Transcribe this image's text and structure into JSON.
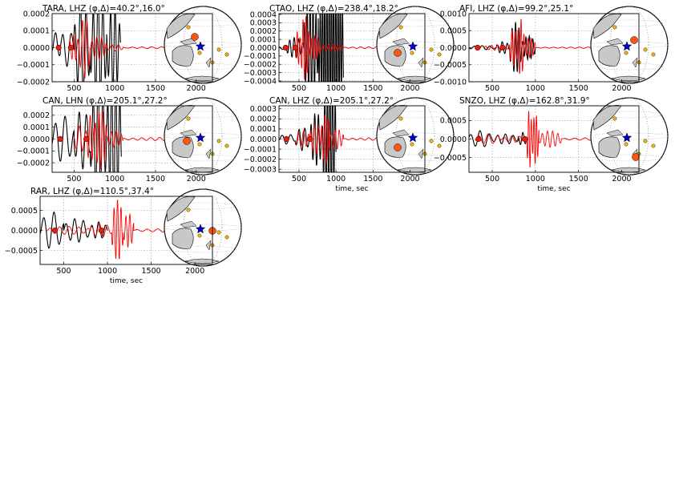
{
  "chart_data": [
    {
      "type": "line",
      "title": "TARA, LHZ (φ,Δ)=40.2°,16.0°",
      "xlabel": "",
      "xlim": [
        230,
        2200
      ],
      "ylim": [
        -0.0002,
        0.0002
      ],
      "x_ticks": [
        500,
        1000,
        1500,
        2000
      ],
      "y_ticks": [
        -0.0002,
        -0.0001,
        0.0,
        0.0001,
        0.0002
      ],
      "x_tick_labels": [
        "500",
        "1000",
        "1500",
        "2000"
      ],
      "y_tick_labels": [
        "−0.0002",
        "−0.0001",
        "0.0000",
        "0.0001",
        "0.0002"
      ],
      "markers_x": [
        310,
        460
      ],
      "series": [
        {
          "color": "#000000",
          "x": [
            230,
            1080
          ],
          "amplitude_envelope": [
            [
              250,
              0.0001
            ],
            [
              500,
              0.00012
            ],
            [
              800,
              0.0003
            ],
            [
              1000,
              0.00022
            ],
            [
              1080,
              0
            ]
          ]
        },
        {
          "color": "#ff0000",
          "x": [
            400,
            2200
          ],
          "amplitude_envelope": [
            [
              450,
              2e-05
            ],
            [
              600,
              7e-05
            ],
            [
              800,
              3e-05
            ],
            [
              1000,
              1e-05
            ],
            [
              1400,
              5e-06
            ]
          ]
        }
      ],
      "grid": true
    },
    {
      "type": "line",
      "title": "CTAO, LHZ (φ,Δ)=238.4°,18.2°",
      "xlabel": "",
      "xlim": [
        230,
        2200
      ],
      "ylim": [
        -0.00041,
        0.00041
      ],
      "x_ticks": [
        500,
        1000,
        1500,
        2000
      ],
      "y_ticks": [
        -0.0004,
        -0.0003,
        -0.0002,
        -0.0001,
        0.0,
        0.0001,
        0.0002,
        0.0003,
        0.0004
      ],
      "x_tick_labels": [
        "500",
        "1000",
        "1500",
        "2000"
      ],
      "y_tick_labels": [
        "−0.0004",
        "−0.0003",
        "−0.0002",
        "−0.0001",
        "0.0000",
        "0.0001",
        "0.0002",
        "0.0003",
        "0.0004"
      ],
      "markers_x": [
        320,
        450
      ],
      "grid": true
    },
    {
      "type": "line",
      "title": "AFI, LHZ (φ,Δ)=99.2°,25.1°",
      "xlabel": "",
      "xlim": [
        230,
        2200
      ],
      "ylim": [
        -0.001,
        0.001
      ],
      "x_ticks": [
        500,
        1000,
        1500,
        2000
      ],
      "y_ticks": [
        -0.001,
        -0.0005,
        0.0,
        0.0005,
        0.001
      ],
      "x_tick_labels": [
        "500",
        "1000",
        "1500",
        "2000"
      ],
      "y_tick_labels": [
        "−0.0010",
        "−0.0005",
        "0.0000",
        "0.0005",
        "0.0010"
      ],
      "markers_x": [
        330,
        620
      ],
      "grid": true
    },
    {
      "type": "line",
      "title": "CAN, LHN (φ,Δ)=205.1°,27.2°",
      "xlabel": "",
      "xlim": [
        230,
        2200
      ],
      "ylim": [
        -0.00028,
        0.00028
      ],
      "x_ticks": [
        500,
        1000,
        1500,
        2000
      ],
      "y_ticks": [
        -0.0002,
        -0.0001,
        0.0,
        0.0001,
        0.0002
      ],
      "x_tick_labels": [
        "500",
        "1000",
        "1500",
        "2000"
      ],
      "y_tick_labels": [
        "−0.0002",
        "−0.0001",
        "0.0000",
        "0.0001",
        "0.0002"
      ],
      "markers_x": [
        330,
        650
      ],
      "grid": true
    },
    {
      "type": "line",
      "title": "CAN, LHZ (φ,Δ)=205.1°,27.2°",
      "xlabel": "time, sec",
      "xlim": [
        230,
        2200
      ],
      "ylim": [
        -0.00033,
        0.00033
      ],
      "x_ticks": [
        500,
        1000,
        1500,
        2000
      ],
      "y_ticks": [
        -0.0003,
        -0.0002,
        -0.0001,
        0.0,
        0.0001,
        0.0002,
        0.0003
      ],
      "x_tick_labels": [
        "500",
        "1000",
        "1500",
        "2000"
      ],
      "y_tick_labels": [
        "−0.0003",
        "−0.0002",
        "−0.0001",
        "0.0000",
        "0.0001",
        "0.0002",
        "0.0003"
      ],
      "markers_x": [
        330,
        650
      ],
      "grid": true
    },
    {
      "type": "line",
      "title": "SNZO, LHZ (φ,Δ)=162.8°,31.9°",
      "xlabel": "time, sec",
      "xlim": [
        230,
        2200
      ],
      "ylim": [
        -0.0009,
        0.0009
      ],
      "x_ticks": [
        500,
        1000,
        1500,
        2000
      ],
      "y_ticks": [
        -0.0005,
        0.0,
        0.0005
      ],
      "x_tick_labels": [
        "500",
        "1000",
        "1500",
        "2000"
      ],
      "y_tick_labels": [
        "−0.0005",
        "0.0000",
        "0.0005"
      ],
      "markers_x": [
        340,
        880
      ],
      "grid": true
    },
    {
      "type": "line",
      "title": "RAR, LHZ (φ,Δ)=110.5°,37.4°",
      "xlabel": "time, sec",
      "xlim": [
        230,
        2200
      ],
      "ylim": [
        -0.00085,
        0.00085
      ],
      "x_ticks": [
        500,
        1000,
        1500,
        2000
      ],
      "y_ticks": [
        -0.0005,
        0.0,
        0.0005
      ],
      "x_tick_labels": [
        "500",
        "1000",
        "1500",
        "2000"
      ],
      "y_tick_labels": [
        "−0.0005",
        "0.0000",
        "0.0005"
      ],
      "markers_x": [
        400,
        930
      ],
      "grid": true
    }
  ],
  "colors": {
    "observed": "#000000",
    "synthetic": "#ff0000",
    "marker": "#dd2211",
    "station": "#ff5511",
    "source_star": "#0000cc",
    "small_station": "#f5b800",
    "land": "#c8c8c8"
  }
}
